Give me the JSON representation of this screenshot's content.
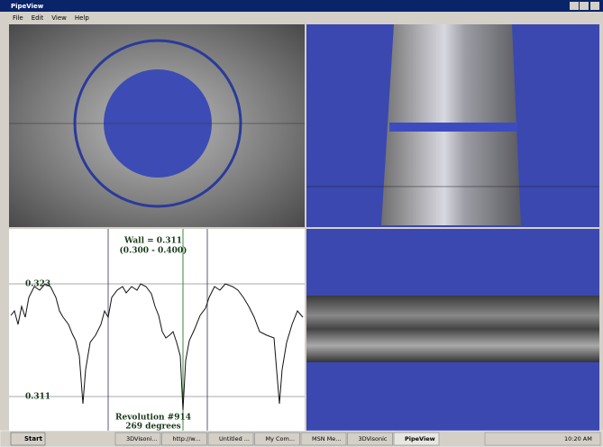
{
  "window": {
    "title": "PipeView",
    "menu": [
      "File",
      "Edit",
      "View",
      "Help"
    ]
  },
  "plot": {
    "wall": "Wall = 0.311",
    "range": "(0.300 - 0.400)",
    "upper_label": "0.323",
    "lower_label": "0.311",
    "revolution": "Revolution #914",
    "degrees": "269 degrees"
  },
  "taskbar": {
    "start": "Start",
    "items": [
      "3DVisoni...",
      "http://w...",
      "Untitled ...",
      "My Com...",
      "MSN Me...",
      "3DVisonic",
      "PipeView"
    ],
    "clock": "10:20 AM"
  }
}
